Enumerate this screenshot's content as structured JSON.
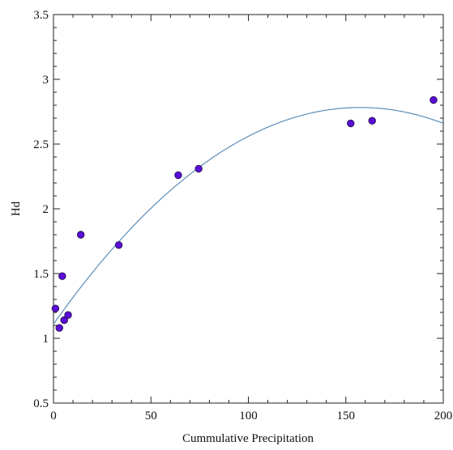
{
  "chart_data": {
    "type": "scatter",
    "title": "",
    "xlabel": "Cummulative Precipitation",
    "ylabel": "Hd",
    "xlim": [
      0,
      200
    ],
    "ylim": [
      0.5,
      3.5
    ],
    "x_ticks": [
      0,
      50,
      100,
      150,
      200
    ],
    "y_ticks": [
      0.5,
      1,
      1.5,
      2,
      2.5,
      3,
      3.5
    ],
    "x_tick_labels": [
      "0",
      "50",
      "100",
      "150",
      "200"
    ],
    "y_tick_labels": [
      "0.5",
      "1",
      "1.5",
      "2",
      "2.5",
      "3",
      "3.5"
    ],
    "grid": false,
    "legend": "none",
    "series": [
      {
        "kind": "points",
        "color": "#5a0fd6",
        "edge_color": "#1a0a40",
        "points": [
          {
            "x": 1,
            "y": 1.23
          },
          {
            "x": 3,
            "y": 1.08
          },
          {
            "x": 4.5,
            "y": 1.48
          },
          {
            "x": 5.5,
            "y": 1.14
          },
          {
            "x": 7.5,
            "y": 1.18
          },
          {
            "x": 14,
            "y": 1.8
          },
          {
            "x": 33.5,
            "y": 1.72
          },
          {
            "x": 64,
            "y": 2.26
          },
          {
            "x": 74.5,
            "y": 2.31
          },
          {
            "x": 152.5,
            "y": 2.66
          },
          {
            "x": 163.5,
            "y": 2.68
          },
          {
            "x": 195,
            "y": 2.84
          }
        ]
      },
      {
        "kind": "fit-curve",
        "color": "#5b8db8",
        "x_range": [
          0,
          200
        ],
        "equation": "y = 1.11 + 0.02125*x - 0.0000675*x^2"
      }
    ]
  }
}
